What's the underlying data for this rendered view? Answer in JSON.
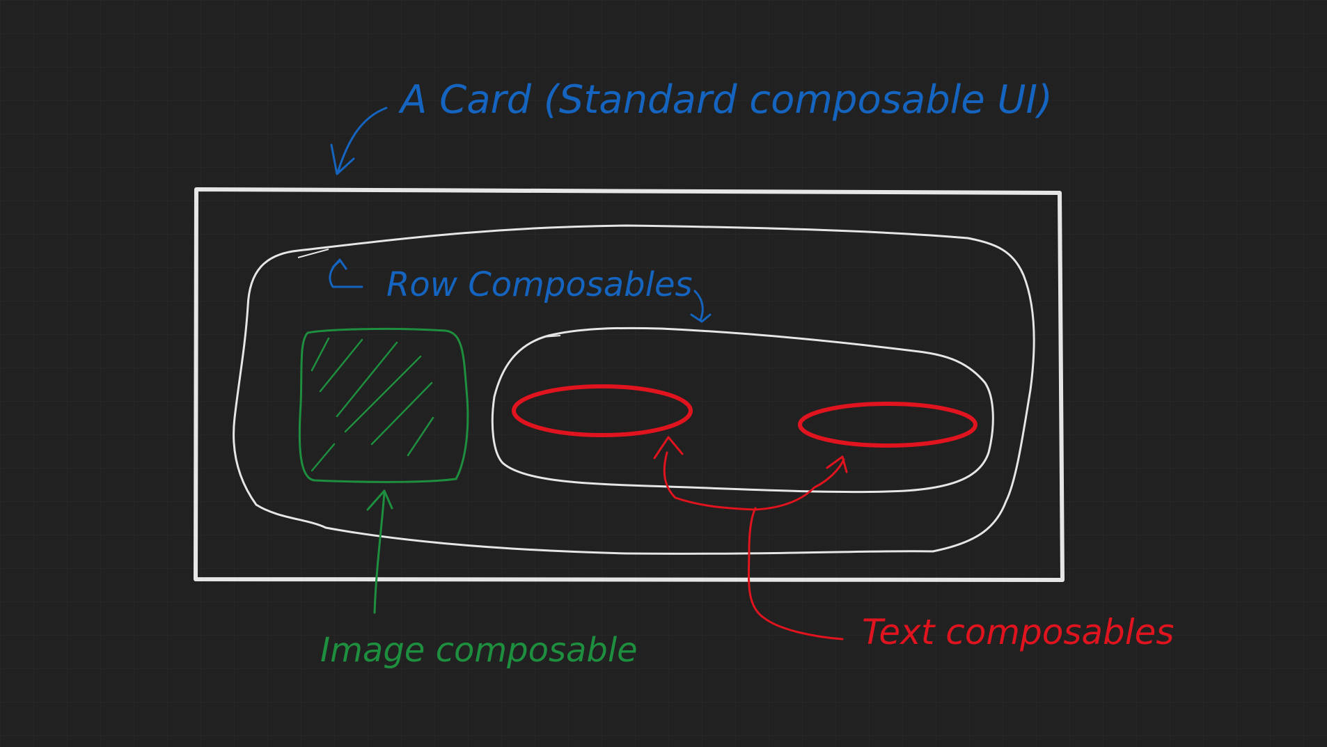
{
  "labels": {
    "card": "A Card (Standard composable UI)",
    "row": "Row Composables",
    "image": "Image composable",
    "text": "Text composables"
  },
  "colors": {
    "background": "#212121",
    "grid": "#2a2a2a",
    "outline": "#e6e6e6",
    "card_label": "#1565c0",
    "image": "#1e8f3e",
    "text": "#e0141e"
  }
}
